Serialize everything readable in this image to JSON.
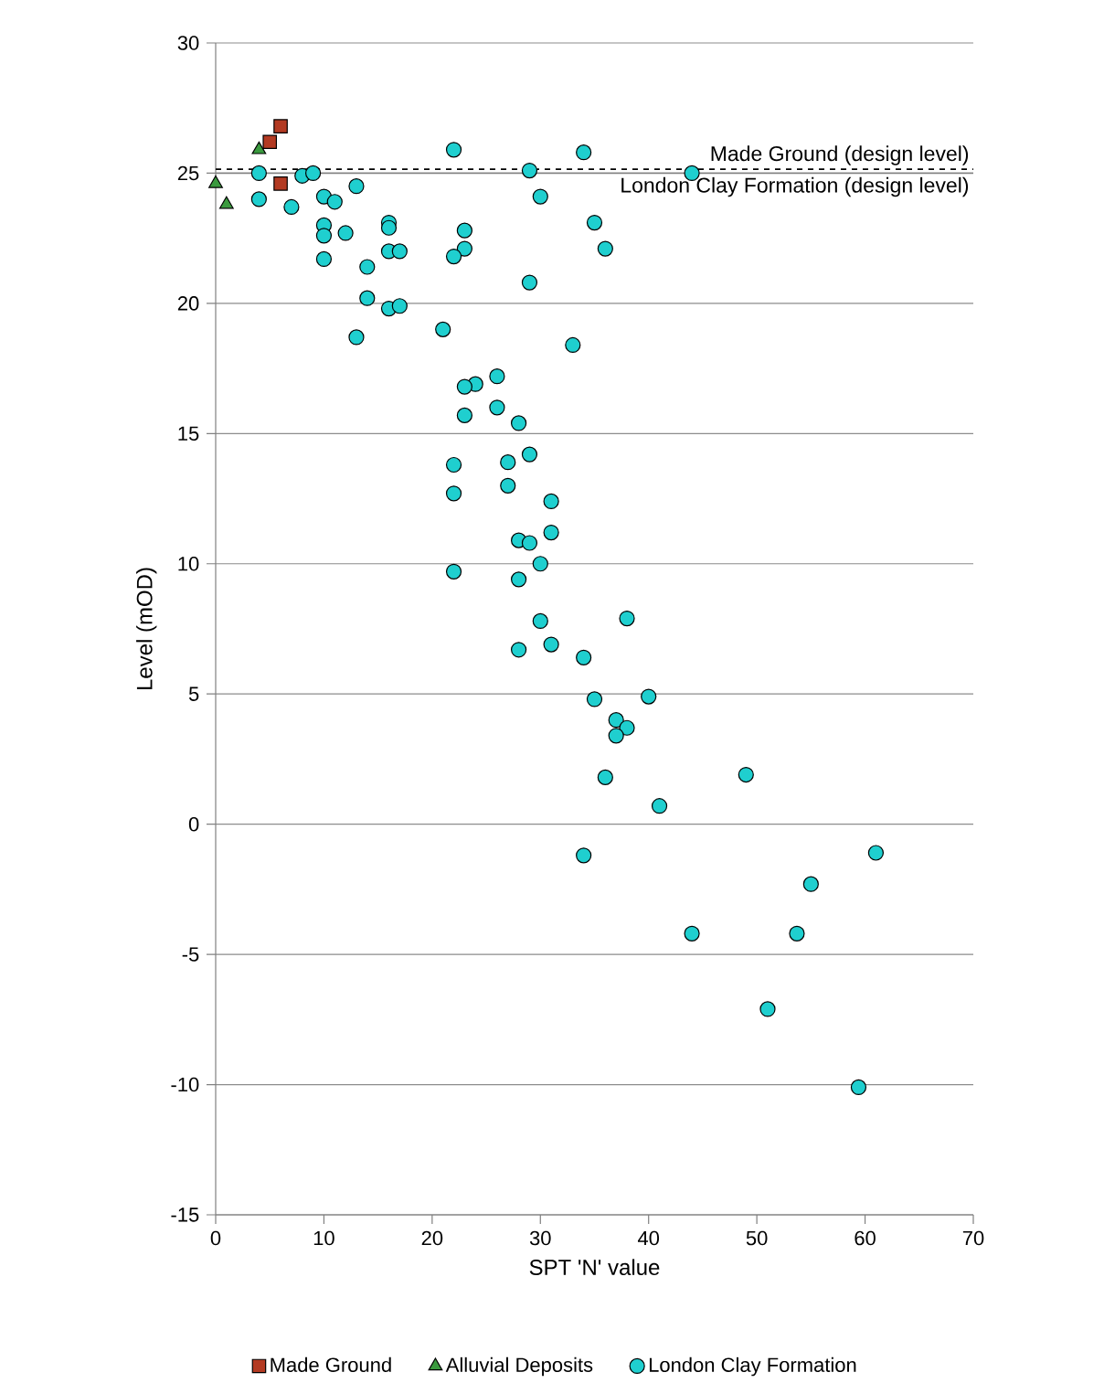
{
  "chart_data": {
    "type": "scatter",
    "xlabel": "SPT 'N' value",
    "ylabel": "Level (mOD)",
    "xlim": [
      0,
      70
    ],
    "ylim": [
      -15,
      30
    ],
    "xticks": [
      0,
      10,
      20,
      30,
      40,
      50,
      60,
      70
    ],
    "yticks": [
      -15,
      -10,
      -5,
      0,
      5,
      10,
      15,
      20,
      25,
      30
    ],
    "grid": "y",
    "legend": "bottom",
    "series": [
      {
        "name": "Made Ground",
        "color": "#b33a22",
        "marker": "square",
        "x": [
          6,
          5,
          6
        ],
        "values": [
          26.8,
          26.2,
          24.6
        ]
      },
      {
        "name": "Alluvial Deposits",
        "color": "#3a9a3e",
        "marker": "triangle",
        "x": [
          0,
          4,
          1
        ],
        "values": [
          24.6,
          25.9,
          23.8
        ]
      },
      {
        "name": "London Clay Formation",
        "color": "#1fcfcf",
        "marker": "circle",
        "x": [
          4,
          4,
          8,
          9,
          10,
          11,
          13,
          7,
          10,
          10,
          12,
          10,
          16,
          16,
          16,
          17,
          14,
          14,
          16,
          17,
          13,
          22,
          23,
          23,
          22,
          21,
          29,
          30,
          34,
          35,
          36,
          29,
          33,
          44,
          26,
          24,
          23,
          26,
          23,
          28,
          29,
          27,
          22,
          27,
          22,
          31,
          31,
          28,
          29,
          30,
          22,
          28,
          30,
          38,
          31,
          28,
          34,
          35,
          40,
          37,
          38,
          37,
          36,
          49,
          41,
          34,
          61,
          55,
          44,
          53.7,
          51,
          59.4
        ],
        "values": [
          25.0,
          24.0,
          24.9,
          25.0,
          24.1,
          23.9,
          24.5,
          23.7,
          23.0,
          22.6,
          22.7,
          21.7,
          23.1,
          22.9,
          22.0,
          22.0,
          21.4,
          20.2,
          19.8,
          19.9,
          18.7,
          25.9,
          22.8,
          22.1,
          21.8,
          19.0,
          25.1,
          24.1,
          25.8,
          23.1,
          22.1,
          20.8,
          18.4,
          25.0,
          17.2,
          16.9,
          16.8,
          16.0,
          15.7,
          15.4,
          14.2,
          13.9,
          13.8,
          13.0,
          12.7,
          12.4,
          11.2,
          10.9,
          10.8,
          10.0,
          9.7,
          9.4,
          7.8,
          7.9,
          6.9,
          6.7,
          6.4,
          4.8,
          4.9,
          4.0,
          3.7,
          3.4,
          1.8,
          1.9,
          0.7,
          -1.2,
          -1.1,
          -2.3,
          -4.2,
          -4.2,
          -7.1,
          -10.1
        ]
      }
    ],
    "ref_lines": [
      {
        "axis": "y",
        "value": 25.15,
        "label": "Made Ground (design level)",
        "color": "#000000",
        "line_style": "dashed"
      },
      {
        "axis": "y",
        "value": 25,
        "label": "London Clay Formation (design level)",
        "color": "#808080",
        "line_style": "solid"
      }
    ]
  }
}
